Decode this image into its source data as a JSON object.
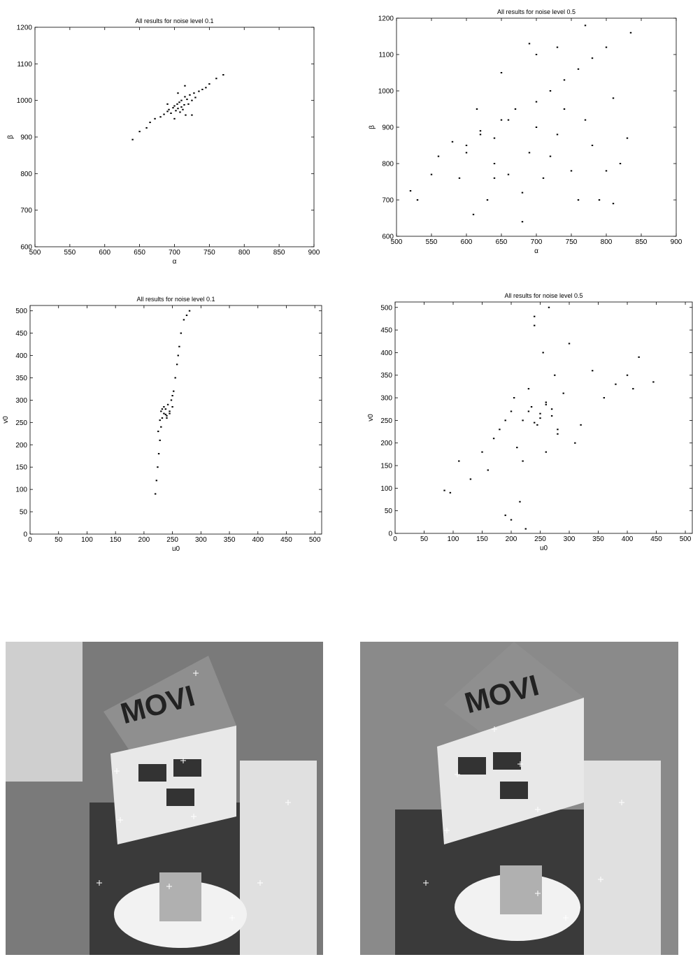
{
  "chart_data": [
    {
      "type": "scatter",
      "title": "All results for noise level 0.1",
      "x_label": "α",
      "y_label": "β",
      "color": "#000000",
      "xlim": [
        500,
        900
      ],
      "ylim": [
        600,
        1200
      ],
      "xticks": [
        500,
        550,
        600,
        650,
        700,
        750,
        800,
        850,
        900
      ],
      "yticks": [
        600,
        700,
        800,
        900,
        1000,
        1100,
        1200
      ],
      "x": [
        640,
        650,
        660,
        665,
        672,
        680,
        685,
        690,
        692,
        695,
        698,
        700,
        702,
        704,
        705,
        707,
        708,
        710,
        710,
        712,
        714,
        715,
        716,
        718,
        720,
        722,
        725,
        728,
        730,
        735,
        740,
        745,
        750,
        760,
        770,
        700,
        715,
        725,
        690,
        705
      ],
      "values": [
        893,
        915,
        925,
        940,
        950,
        955,
        962,
        970,
        975,
        965,
        980,
        985,
        972,
        990,
        978,
        995,
        968,
        982,
        1000,
        975,
        988,
        1010,
        960,
        1003,
        990,
        1015,
        1000,
        1020,
        1008,
        1025,
        1030,
        1035,
        1045,
        1060,
        1070,
        950,
        1040,
        960,
        990,
        1020
      ]
    },
    {
      "type": "scatter",
      "title": "All results for noise level 0.5",
      "x_label": "α",
      "y_label": "β",
      "color": "#000000",
      "xlim": [
        500,
        900
      ],
      "ylim": [
        600,
        1200
      ],
      "xticks": [
        500,
        550,
        600,
        650,
        700,
        750,
        800,
        850,
        900
      ],
      "yticks": [
        600,
        700,
        800,
        900,
        1000,
        1100,
        1200
      ],
      "x": [
        520,
        530,
        550,
        560,
        580,
        590,
        600,
        610,
        620,
        630,
        640,
        650,
        660,
        670,
        680,
        690,
        700,
        710,
        720,
        730,
        740,
        750,
        760,
        770,
        780,
        790,
        800,
        810,
        820,
        830,
        835,
        600,
        620,
        640,
        660,
        680,
        700,
        720,
        740,
        760,
        780,
        800,
        615,
        650,
        690,
        730,
        770,
        810,
        640,
        700
      ],
      "values": [
        725,
        700,
        770,
        820,
        860,
        760,
        830,
        660,
        890,
        700,
        870,
        920,
        770,
        950,
        640,
        830,
        970,
        760,
        1000,
        880,
        1030,
        780,
        1060,
        920,
        1090,
        700,
        1120,
        690,
        800,
        870,
        1160,
        850,
        880,
        800,
        920,
        720,
        1100,
        820,
        950,
        700,
        850,
        780,
        950,
        1050,
        1130,
        1120,
        1180,
        980,
        760,
        900
      ]
    },
    {
      "type": "scatter",
      "title": "All results for noise level 0.1",
      "x_label": "u0",
      "y_label": "v0",
      "color": "#000000",
      "xlim": [
        0,
        512
      ],
      "ylim": [
        0,
        512
      ],
      "xticks": [
        0,
        50,
        100,
        150,
        200,
        250,
        300,
        350,
        400,
        450,
        500
      ],
      "yticks": [
        0,
        50,
        100,
        150,
        200,
        250,
        300,
        350,
        400,
        450,
        500
      ],
      "x": [
        220,
        222,
        224,
        226,
        228,
        230,
        232,
        235,
        238,
        240,
        242,
        245,
        248,
        250,
        252,
        255,
        258,
        260,
        262,
        265,
        270,
        275,
        280,
        230,
        235,
        240,
        245,
        228,
        225,
        250,
        238,
        232
      ],
      "values": [
        90,
        120,
        150,
        180,
        210,
        240,
        260,
        270,
        280,
        265,
        290,
        275,
        300,
        285,
        320,
        350,
        380,
        400,
        420,
        450,
        480,
        490,
        500,
        275,
        285,
        260,
        270,
        255,
        230,
        310,
        268,
        280
      ]
    },
    {
      "type": "scatter",
      "title": "All results for noise level 0.5",
      "x_label": "u0",
      "y_label": "v0",
      "color": "#000000",
      "xlim": [
        0,
        512
      ],
      "ylim": [
        0,
        512
      ],
      "xticks": [
        0,
        50,
        100,
        150,
        200,
        250,
        300,
        350,
        400,
        450,
        500
      ],
      "yticks": [
        0,
        50,
        100,
        150,
        200,
        250,
        300,
        350,
        400,
        450,
        500
      ],
      "x": [
        85,
        95,
        110,
        130,
        150,
        160,
        170,
        180,
        190,
        200,
        205,
        210,
        215,
        220,
        225,
        230,
        235,
        240,
        245,
        250,
        255,
        260,
        265,
        270,
        275,
        280,
        290,
        300,
        310,
        320,
        340,
        360,
        380,
        400,
        410,
        420,
        445,
        230,
        250,
        270,
        240,
        260,
        200,
        220,
        280,
        190,
        240,
        260
      ],
      "values": [
        95,
        90,
        160,
        120,
        180,
        140,
        210,
        230,
        40,
        30,
        300,
        190,
        70,
        250,
        10,
        320,
        280,
        460,
        240,
        265,
        400,
        290,
        500,
        260,
        350,
        220,
        310,
        420,
        200,
        240,
        360,
        300,
        330,
        350,
        320,
        390,
        335,
        270,
        255,
        275,
        245,
        285,
        270,
        160,
        230,
        250,
        480,
        180
      ]
    }
  ],
  "images": [
    {
      "text": "MOVI"
    },
    {
      "text": "MOVI"
    }
  ]
}
